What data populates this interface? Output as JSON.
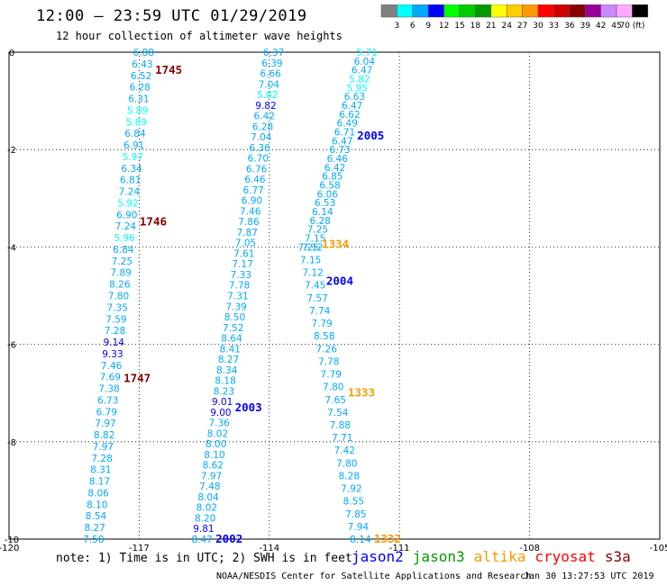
{
  "header": {
    "title": "12:00 — 23:59 UTC 01/29/2019",
    "subtitle": "12 hour collection of altimeter wave heights"
  },
  "color_scale": {
    "colors": [
      "#808080",
      "#00ffff",
      "#00aaff",
      "#0000ff",
      "#00ff00",
      "#00cc00",
      "#009900",
      "#ffff00",
      "#ffcc00",
      "#ff9900",
      "#ff0000",
      "#cc0000",
      "#880000",
      "#990099",
      "#cc88ff",
      "#ffaaff",
      "#000000"
    ],
    "labels": [
      "3",
      "6",
      "9",
      "12",
      "15",
      "18",
      "21",
      "24",
      "27",
      "30",
      "33",
      "36",
      "39",
      "42",
      "45",
      "70 (ft)"
    ]
  },
  "footer": {
    "note": "note: 1) Time is in UTC; 2) SWH is in feet",
    "credit": "NOAA/NESDIS Center for Satellite Applications and Research",
    "date": "Jan 30 13:27:53 UTC 2019",
    "satellites": [
      {
        "name": "jason2",
        "color": "#0000ff"
      },
      {
        "name": "jason3",
        "color": "#009900"
      },
      {
        "name": "altika",
        "color": "#ff9900"
      },
      {
        "name": "cryosat",
        "color": "#ff0000"
      },
      {
        "name": "s3a",
        "color": "#880000"
      }
    ]
  },
  "chart_data": {
    "type": "scatter",
    "title": "12:00 — 23:59 UTC 01/29/2019",
    "subtitle": "12 hour collection of altimeter wave heights",
    "xlim": [
      -120,
      -105
    ],
    "ylim": [
      -10,
      0
    ],
    "x_ticks": [
      -120,
      -117,
      -114,
      -111,
      -108,
      -105
    ],
    "x_tick_labels": [
      "-120",
      "-117",
      "-114",
      "-111",
      "-108",
      "-105"
    ],
    "y_ticks": [
      0,
      -2,
      -4,
      -6,
      -8,
      -10
    ],
    "y_tick_labels": [
      "0",
      "-2",
      "-4",
      "-6",
      "-8",
      "-10"
    ],
    "grid": true,
    "tracks": [
      {
        "x0": -116.9,
        "y0": 0.0,
        "x1": -118.05,
        "y1": -10.0,
        "labels": [
          {
            "y": -0.37,
            "text": "1745"
          },
          {
            "y": -3.48,
            "text": "1746"
          },
          {
            "y": -6.7,
            "text": "1747"
          }
        ],
        "values": [
          6.88,
          6.43,
          6.52,
          6.28,
          6.31,
          5.89,
          5.89,
          6.84,
          6.91,
          5.97,
          6.34,
          6.81,
          7.24,
          5.92,
          6.9,
          7.24,
          5.96,
          6.84,
          7.25,
          7.89,
          8.26,
          7.8,
          7.35,
          7.59,
          7.28,
          9.14,
          9.33,
          7.46,
          7.69,
          7.38,
          6.73,
          6.79,
          7.97,
          8.82,
          7.97,
          7.28,
          8.31,
          8.17,
          8.06,
          8.1,
          8.54,
          8.27,
          7.58
        ]
      },
      {
        "x0": -113.9,
        "y0": 0.0,
        "x1": -115.55,
        "y1": -10.0,
        "labels": [
          {
            "y": -7.3,
            "text": "2003"
          },
          {
            "y": -10.0,
            "text": "2002"
          }
        ],
        "values": [
          6.37,
          6.39,
          6.66,
          7.04,
          5.82,
          9.82,
          6.42,
          6.28,
          7.04,
          6.36,
          6.7,
          6.76,
          6.46,
          6.77,
          6.9,
          7.46,
          7.86,
          7.87,
          7.05,
          7.61,
          7.17,
          7.33,
          7.78,
          7.31,
          7.39,
          8.5,
          7.52,
          8.64,
          8.41,
          8.27,
          8.34,
          8.18,
          8.23,
          9.01,
          9.0,
          7.36,
          8.02,
          8.0,
          8.1,
          8.62,
          7.97,
          7.48,
          8.04,
          8.02,
          8.2,
          9.81,
          8.47
        ]
      },
      {
        "x0": -111.75,
        "y0": 0.0,
        "x1": -113.0,
        "y1": -4.0,
        "labels": [
          {
            "y": -1.72,
            "text": "2005"
          },
          {
            "y": -4.7,
            "text": "2004"
          }
        ],
        "values": [
          5.71,
          6.04,
          6.47,
          5.82,
          5.95,
          6.63,
          6.47,
          6.62,
          6.49,
          6.71,
          6.47,
          6.73,
          6.46,
          6.42,
          6.85,
          6.58,
          6.06,
          6.53,
          6.14,
          6.28,
          7.25,
          7.15,
          7.12
        ]
      },
      {
        "x0": -113.1,
        "y0": -4.0,
        "x1": -111.9,
        "y1": -10.0,
        "labels": [
          {
            "y": -3.95,
            "text": "1334"
          },
          {
            "y": -7.0,
            "text": "1333"
          },
          {
            "y": -10.0,
            "text": "1332"
          }
        ],
        "values": [
          7.25,
          7.15,
          7.12,
          7.45,
          7.57,
          7.74,
          7.79,
          8.58,
          7.26,
          7.78,
          7.79,
          7.8,
          7.65,
          7.54,
          7.88,
          7.71,
          7.42,
          7.8,
          8.28,
          7.92,
          8.55,
          7.85,
          7.94,
          8.14
        ]
      }
    ]
  }
}
